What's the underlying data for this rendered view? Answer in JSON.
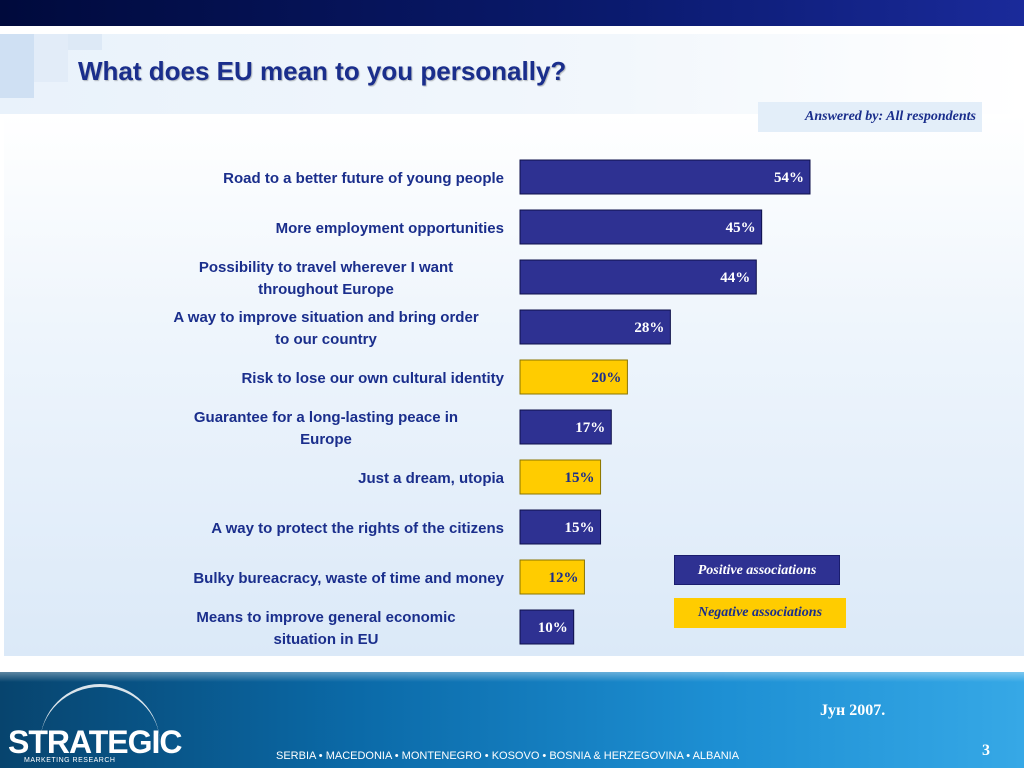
{
  "slide": {
    "title": "What does EU mean to you personally?",
    "answered_by": "Answered by: All respondents"
  },
  "colors": {
    "positive": "#2e3192",
    "negative": "#ffcc00",
    "category_text": "#1a2e8c"
  },
  "chart_data": {
    "type": "bar",
    "orientation": "horizontal",
    "categories": [
      "Road to a better future of young people",
      "More employment opportunities",
      "Possibility to travel wherever I want throughout Europe",
      "A way to improve situation and bring order to our country",
      "Risk to lose our own cultural identity",
      "Guarantee for a long-lasting peace in Europe",
      "Just a dream,  utopia",
      "A way to protect the rights of the citizens",
      "Bulky bureacracy, waste of time and money",
      "Means to improve general economic situation in EU"
    ],
    "category_lines": [
      [
        "Road to a better future of young people"
      ],
      [
        "More employment opportunities"
      ],
      [
        "Possibility to travel wherever I want",
        "throughout Europe"
      ],
      [
        "A way to improve situation and bring order",
        "to our country"
      ],
      [
        "Risk to lose our own cultural identity"
      ],
      [
        "Guarantee for a long-lasting peace in",
        "Europe"
      ],
      [
        "Just a dream,  utopia"
      ],
      [
        "A way to protect the rights of the citizens"
      ],
      [
        "Bulky bureacracy, waste of time and money"
      ],
      [
        "Means to improve general economic",
        "situation in EU"
      ]
    ],
    "values": [
      54,
      45,
      44,
      28,
      20,
      17,
      15,
      15,
      12,
      10
    ],
    "value_labels": [
      "54%",
      "45%",
      "44%",
      "28%",
      "20%",
      "17%",
      "15%",
      "15%",
      "12%",
      "10%"
    ],
    "association": [
      "positive",
      "positive",
      "positive",
      "positive",
      "negative",
      "positive",
      "negative",
      "positive",
      "negative",
      "positive"
    ],
    "xlim": [
      0,
      100
    ],
    "grid": false,
    "legend": {
      "placement": "bottom-right",
      "entries": [
        {
          "name": "Positive associations",
          "association": "positive"
        },
        {
          "name": "Negative associations",
          "association": "negative"
        }
      ]
    }
  },
  "footer": {
    "logo_text": "STRATEGIC",
    "logo_subtext": "MARKETING RESEARCH",
    "countries": "SERBIA  •  MACEDONIA  •  MONTENEGRO  •  KOSOVO  •  BOSNIA & HERZEGOVINA  •  ALBANIA",
    "date": "Јун 2007.",
    "page_number": "3"
  }
}
